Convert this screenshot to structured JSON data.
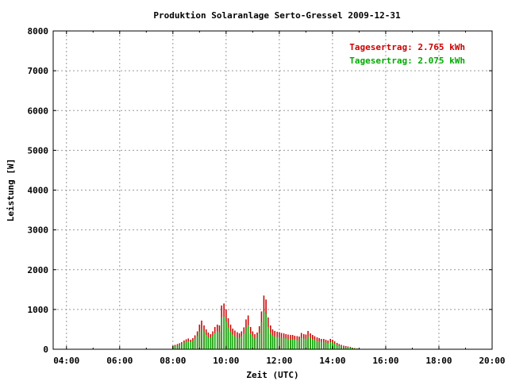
{
  "chart_data": {
    "type": "bar",
    "title": "Produktion Solaranlage Serto-Gressel 2009-12-31",
    "xlabel": "Zeit (UTC)",
    "ylabel": "Leistung [W]",
    "xlim": [
      3.5,
      20.0
    ],
    "ylim": [
      0,
      8000
    ],
    "x_ticks": [
      "04:00",
      "06:00",
      "08:00",
      "10:00",
      "12:00",
      "14:00",
      "16:00",
      "18:00",
      "20:00"
    ],
    "x_tick_values": [
      4,
      6,
      8,
      10,
      12,
      14,
      16,
      18,
      20
    ],
    "y_ticks": [
      "0",
      "1000",
      "2000",
      "3000",
      "4000",
      "5000",
      "6000",
      "7000",
      "8000"
    ],
    "y_tick_values": [
      0,
      1000,
      2000,
      3000,
      4000,
      5000,
      6000,
      7000,
      8000
    ],
    "grid": true,
    "legend": {
      "placement": "top-right"
    },
    "bar_interval_hours": 0.0833,
    "series": [
      {
        "name": "Tagesertrag: 2.765 kWh",
        "color": "#cc0000",
        "x": [
          8.0,
          8.08,
          8.17,
          8.25,
          8.33,
          8.42,
          8.5,
          8.58,
          8.67,
          8.75,
          8.83,
          8.92,
          9.0,
          9.08,
          9.17,
          9.25,
          9.33,
          9.42,
          9.5,
          9.58,
          9.67,
          9.75,
          9.83,
          9.92,
          10.0,
          10.08,
          10.17,
          10.25,
          10.33,
          10.42,
          10.5,
          10.58,
          10.67,
          10.75,
          10.83,
          10.92,
          11.0,
          11.08,
          11.17,
          11.25,
          11.33,
          11.42,
          11.5,
          11.58,
          11.67,
          11.75,
          11.83,
          11.92,
          12.0,
          12.08,
          12.17,
          12.25,
          12.33,
          12.42,
          12.5,
          12.58,
          12.67,
          12.75,
          12.83,
          12.92,
          13.0,
          13.08,
          13.17,
          13.25,
          13.33,
          13.42,
          13.5,
          13.58,
          13.67,
          13.75,
          13.83,
          13.92,
          14.0,
          14.08,
          14.17,
          14.25,
          14.33,
          14.42,
          14.5,
          14.58,
          14.67,
          14.75,
          14.83,
          14.92,
          15.0,
          15.08
        ],
        "values": [
          90,
          110,
          130,
          150,
          180,
          220,
          250,
          270,
          240,
          280,
          350,
          450,
          620,
          720,
          600,
          500,
          420,
          380,
          450,
          560,
          620,
          600,
          1100,
          1150,
          1000,
          780,
          620,
          520,
          470,
          430,
          400,
          450,
          550,
          750,
          850,
          560,
          450,
          380,
          420,
          580,
          950,
          1350,
          1250,
          800,
          600,
          500,
          460,
          440,
          430,
          410,
          400,
          380,
          370,
          360,
          360,
          340,
          330,
          320,
          410,
          380,
          370,
          460,
          400,
          360,
          330,
          300,
          280,
          260,
          260,
          240,
          220,
          260,
          240,
          200,
          160,
          130,
          110,
          90,
          80,
          70,
          60,
          40,
          30,
          20,
          15,
          10
        ]
      },
      {
        "name": "Tagesertrag: 2.075 kWh",
        "color": "#00aa00",
        "x": [
          8.0,
          8.08,
          8.17,
          8.25,
          8.33,
          8.42,
          8.5,
          8.58,
          8.67,
          8.75,
          8.83,
          8.92,
          9.0,
          9.08,
          9.17,
          9.25,
          9.33,
          9.42,
          9.5,
          9.58,
          9.67,
          9.75,
          9.83,
          9.92,
          10.0,
          10.08,
          10.17,
          10.25,
          10.33,
          10.42,
          10.5,
          10.58,
          10.67,
          10.75,
          10.83,
          10.92,
          11.0,
          11.08,
          11.17,
          11.25,
          11.33,
          11.42,
          11.5,
          11.58,
          11.67,
          11.75,
          11.83,
          11.92,
          12.0,
          12.08,
          12.17,
          12.25,
          12.33,
          12.42,
          12.5,
          12.58,
          12.67,
          12.75,
          12.83,
          12.92,
          13.0,
          13.08,
          13.17,
          13.25,
          13.33,
          13.42,
          13.5,
          13.58,
          13.67,
          13.75,
          13.83,
          13.92,
          14.0,
          14.08,
          14.17,
          14.25,
          14.33,
          14.42,
          14.5,
          14.58,
          14.67,
          14.75,
          14.83,
          14.92,
          15.0,
          15.08
        ],
        "values": [
          60,
          80,
          100,
          120,
          140,
          170,
          190,
          200,
          180,
          210,
          260,
          330,
          450,
          520,
          430,
          360,
          300,
          280,
          330,
          400,
          450,
          430,
          800,
          820,
          700,
          550,
          440,
          370,
          330,
          300,
          280,
          320,
          390,
          540,
          610,
          400,
          320,
          270,
          300,
          410,
          680,
          950,
          880,
          560,
          420,
          350,
          320,
          310,
          300,
          290,
          280,
          270,
          260,
          250,
          250,
          240,
          230,
          220,
          290,
          270,
          260,
          320,
          280,
          250,
          230,
          210,
          200,
          180,
          180,
          170,
          150,
          180,
          170,
          140,
          110,
          90,
          80,
          60,
          55,
          50,
          40,
          30,
          20,
          15,
          10,
          8
        ]
      }
    ]
  }
}
